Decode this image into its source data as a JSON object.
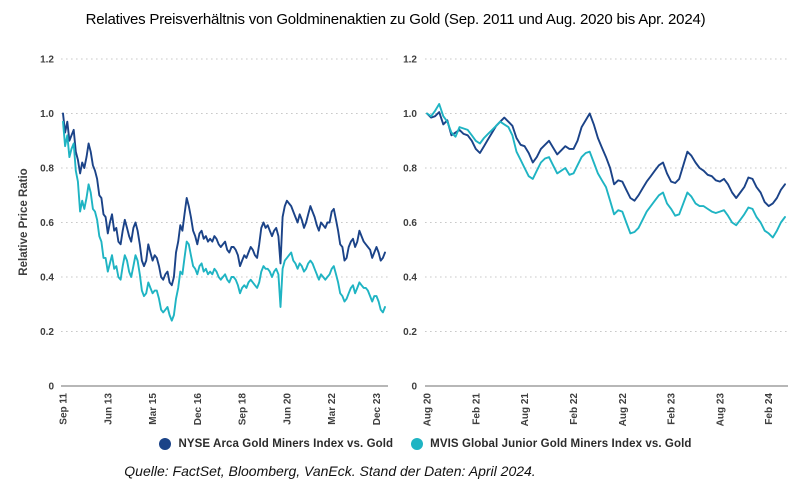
{
  "title": "Relatives Preisverhältnis von Goldminenaktien zu Gold (Sep. 2011 und Aug. 2020 bis Apr. 2024)",
  "source": "Quelle: FactSet, Bloomberg, VanEck. Stand der Daten: April 2024.",
  "colors": {
    "navy": "#1B4388",
    "teal": "#1FB4C3",
    "grid": "#C9C9C9",
    "axis": "#8C8C8C",
    "tick_text": "#3E3E3E"
  },
  "legend": [
    {
      "label": "NYSE Arca Gold Miners Index vs. Gold",
      "color": "navy"
    },
    {
      "label": "MVIS Global Junior Gold Miners Index vs. Gold",
      "color": "teal"
    }
  ],
  "chart_data": [
    {
      "type": "line",
      "ylabel": "Relative Price Ratio",
      "x_start": "Sep 2011",
      "x_end": "Apr 2024",
      "x_tick_labels": [
        "Sep 11",
        "Jun 13",
        "Mar 15",
        "Dec 16",
        "Sep 18",
        "Jun 20",
        "Mar 22",
        "Dec 23"
      ],
      "x_tick_months": [
        0,
        21,
        42,
        63,
        84,
        105,
        126,
        147
      ],
      "x_domain_months": [
        0,
        151
      ],
      "months_per_sample": 1,
      "y_ticks": [
        "0",
        "0.2",
        "0.4",
        "0.6",
        "0.8",
        "1.0",
        "1.2"
      ],
      "ylim": [
        0,
        1.2
      ],
      "grid": "dotted",
      "series": [
        {
          "name": "NYSE Arca Gold Miners Index vs. Gold",
          "color": "navy",
          "values": [
            1.0,
            0.93,
            0.97,
            0.9,
            0.92,
            0.94,
            0.86,
            0.83,
            0.78,
            0.82,
            0.8,
            0.84,
            0.89,
            0.86,
            0.81,
            0.79,
            0.76,
            0.7,
            0.69,
            0.63,
            0.62,
            0.56,
            0.6,
            0.63,
            0.57,
            0.58,
            0.53,
            0.52,
            0.57,
            0.61,
            0.58,
            0.55,
            0.53,
            0.58,
            0.6,
            0.57,
            0.52,
            0.46,
            0.44,
            0.46,
            0.52,
            0.49,
            0.46,
            0.48,
            0.47,
            0.44,
            0.4,
            0.39,
            0.41,
            0.42,
            0.38,
            0.37,
            0.4,
            0.49,
            0.53,
            0.59,
            0.57,
            0.63,
            0.69,
            0.66,
            0.62,
            0.57,
            0.55,
            0.52,
            0.56,
            0.57,
            0.54,
            0.55,
            0.53,
            0.54,
            0.53,
            0.55,
            0.54,
            0.52,
            0.51,
            0.52,
            0.53,
            0.5,
            0.49,
            0.51,
            0.51,
            0.5,
            0.48,
            0.44,
            0.46,
            0.48,
            0.47,
            0.49,
            0.51,
            0.5,
            0.48,
            0.47,
            0.52,
            0.58,
            0.6,
            0.58,
            0.59,
            0.57,
            0.55,
            0.57,
            0.58,
            0.55,
            0.45,
            0.62,
            0.66,
            0.68,
            0.67,
            0.66,
            0.64,
            0.62,
            0.6,
            0.63,
            0.61,
            0.58,
            0.6,
            0.63,
            0.66,
            0.64,
            0.62,
            0.59,
            0.57,
            0.6,
            0.59,
            0.58,
            0.6,
            0.6,
            0.64,
            0.65,
            0.61,
            0.57,
            0.52,
            0.51,
            0.46,
            0.47,
            0.51,
            0.53,
            0.54,
            0.51,
            0.53,
            0.57,
            0.55,
            0.53,
            0.52,
            0.51,
            0.5,
            0.47,
            0.49,
            0.51,
            0.49,
            0.46,
            0.47,
            0.49
          ]
        },
        {
          "name": "MVIS Global Junior Gold Miners Index vs. Gold",
          "color": "teal",
          "values": [
            0.97,
            0.88,
            0.92,
            0.84,
            0.87,
            0.89,
            0.79,
            0.75,
            0.64,
            0.68,
            0.65,
            0.69,
            0.74,
            0.71,
            0.65,
            0.64,
            0.61,
            0.55,
            0.53,
            0.47,
            0.47,
            0.42,
            0.45,
            0.48,
            0.43,
            0.44,
            0.4,
            0.39,
            0.44,
            0.48,
            0.46,
            0.42,
            0.4,
            0.44,
            0.48,
            0.46,
            0.41,
            0.35,
            0.33,
            0.34,
            0.38,
            0.36,
            0.34,
            0.35,
            0.35,
            0.32,
            0.28,
            0.27,
            0.28,
            0.29,
            0.26,
            0.24,
            0.26,
            0.32,
            0.36,
            0.42,
            0.41,
            0.47,
            0.53,
            0.52,
            0.48,
            0.44,
            0.43,
            0.41,
            0.44,
            0.45,
            0.42,
            0.43,
            0.41,
            0.42,
            0.41,
            0.43,
            0.42,
            0.4,
            0.39,
            0.4,
            0.41,
            0.39,
            0.38,
            0.4,
            0.4,
            0.39,
            0.37,
            0.34,
            0.36,
            0.37,
            0.36,
            0.38,
            0.39,
            0.38,
            0.37,
            0.36,
            0.38,
            0.42,
            0.44,
            0.43,
            0.43,
            0.42,
            0.4,
            0.42,
            0.43,
            0.41,
            0.29,
            0.43,
            0.46,
            0.47,
            0.48,
            0.49,
            0.46,
            0.45,
            0.43,
            0.45,
            0.44,
            0.42,
            0.43,
            0.45,
            0.46,
            0.45,
            0.43,
            0.41,
            0.39,
            0.41,
            0.4,
            0.39,
            0.4,
            0.41,
            0.43,
            0.44,
            0.41,
            0.38,
            0.34,
            0.33,
            0.31,
            0.32,
            0.34,
            0.36,
            0.37,
            0.34,
            0.36,
            0.38,
            0.37,
            0.36,
            0.36,
            0.35,
            0.33,
            0.31,
            0.33,
            0.33,
            0.31,
            0.28,
            0.27,
            0.29
          ]
        }
      ]
    },
    {
      "type": "line",
      "x_start": "Aug 2020",
      "x_end": "Apr 2024",
      "x_tick_labels": [
        "Aug 20",
        "Feb 21",
        "Aug 21",
        "Feb 22",
        "Aug 22",
        "Feb 23",
        "Aug 23",
        "Feb 24"
      ],
      "x_tick_months": [
        0,
        6,
        12,
        18,
        24,
        30,
        36,
        42
      ],
      "x_domain_months": [
        0,
        44
      ],
      "months_per_sample": 0.5,
      "y_ticks": [
        "0",
        "0.2",
        "0.4",
        "0.6",
        "0.8",
        "1.0",
        "1.2"
      ],
      "ylim": [
        0,
        1.2
      ],
      "grid": "dotted",
      "series": [
        {
          "name": "NYSE Arca Gold Miners Index vs. Gold",
          "color": "navy",
          "values": [
            1.0,
            0.985,
            0.99,
            1.005,
            0.96,
            0.975,
            0.92,
            0.93,
            0.94,
            0.925,
            0.92,
            0.9,
            0.87,
            0.855,
            0.88,
            0.905,
            0.93,
            0.955,
            0.97,
            0.985,
            0.97,
            0.955,
            0.91,
            0.885,
            0.88,
            0.855,
            0.82,
            0.84,
            0.87,
            0.885,
            0.9,
            0.875,
            0.85,
            0.865,
            0.88,
            0.87,
            0.87,
            0.9,
            0.95,
            0.975,
            1.0,
            0.96,
            0.91,
            0.875,
            0.84,
            0.8,
            0.74,
            0.755,
            0.75,
            0.72,
            0.69,
            0.68,
            0.7,
            0.725,
            0.75,
            0.77,
            0.79,
            0.81,
            0.82,
            0.78,
            0.75,
            0.745,
            0.76,
            0.81,
            0.86,
            0.845,
            0.82,
            0.8,
            0.79,
            0.775,
            0.77,
            0.755,
            0.75,
            0.76,
            0.74,
            0.71,
            0.69,
            0.71,
            0.73,
            0.765,
            0.76,
            0.73,
            0.71,
            0.675,
            0.66,
            0.67,
            0.69,
            0.72,
            0.74
          ]
        },
        {
          "name": "MVIS Global Junior Gold Miners Index vs. Gold",
          "color": "teal",
          "values": [
            1.0,
            0.99,
            1.01,
            1.035,
            0.99,
            0.97,
            0.93,
            0.915,
            0.95,
            0.945,
            0.94,
            0.92,
            0.9,
            0.89,
            0.91,
            0.925,
            0.94,
            0.955,
            0.97,
            0.96,
            0.95,
            0.92,
            0.86,
            0.83,
            0.8,
            0.77,
            0.76,
            0.79,
            0.82,
            0.835,
            0.84,
            0.81,
            0.78,
            0.79,
            0.8,
            0.775,
            0.78,
            0.81,
            0.84,
            0.855,
            0.86,
            0.82,
            0.78,
            0.755,
            0.73,
            0.68,
            0.63,
            0.645,
            0.64,
            0.6,
            0.56,
            0.565,
            0.58,
            0.61,
            0.64,
            0.66,
            0.68,
            0.7,
            0.71,
            0.67,
            0.65,
            0.625,
            0.63,
            0.67,
            0.71,
            0.695,
            0.67,
            0.66,
            0.66,
            0.65,
            0.64,
            0.635,
            0.64,
            0.645,
            0.625,
            0.6,
            0.59,
            0.61,
            0.63,
            0.655,
            0.65,
            0.62,
            0.6,
            0.57,
            0.56,
            0.545,
            0.57,
            0.6,
            0.62
          ]
        }
      ]
    }
  ]
}
